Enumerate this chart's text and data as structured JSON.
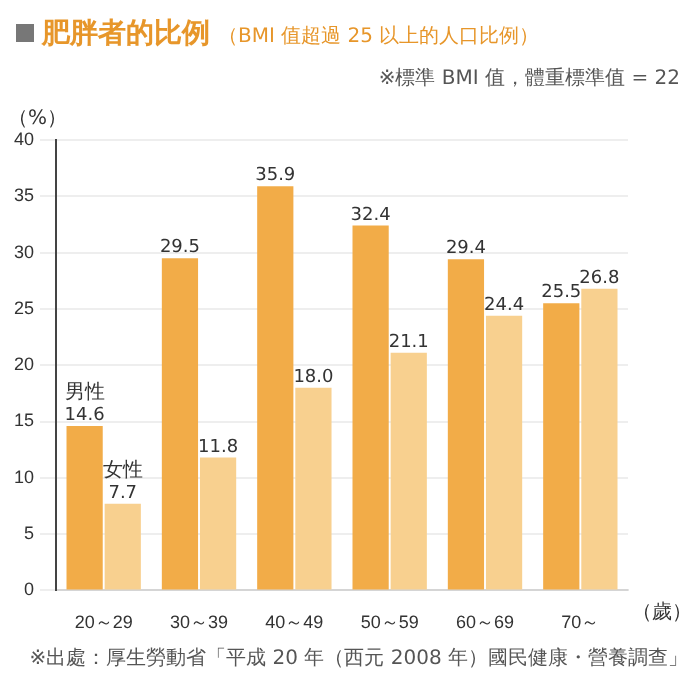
{
  "chart_data": {
    "type": "bar",
    "title": "肥胖者的比例",
    "subtitle": "（BMI 值超過 25 以上的人口比例）",
    "ylabel": "（%）",
    "xlabel": "（歲）",
    "categories": [
      "20～29",
      "30～39",
      "40～49",
      "50～59",
      "60～69",
      "70～"
    ],
    "series": [
      {
        "name": "男性",
        "color": "#f2ac48",
        "values": [
          14.6,
          29.5,
          35.9,
          32.4,
          29.4,
          25.5
        ],
        "value_labels": [
          "14.6",
          "29.5",
          "35.9",
          "32.4",
          "29.4",
          "25.5"
        ]
      },
      {
        "name": "女性",
        "color": "#f8d08f",
        "values": [
          7.7,
          11.8,
          18.0,
          21.1,
          24.4,
          26.8
        ],
        "value_labels": [
          "7.7",
          "11.8",
          "18.0",
          "21.1",
          "24.4",
          "26.8"
        ]
      }
    ],
    "ylim": [
      0,
      40
    ],
    "yticks": [
      0,
      5,
      10,
      15,
      20,
      25,
      30,
      35,
      40
    ],
    "grid": "y",
    "legend": false,
    "annotations": [
      "※標準 BMI 值，體重標準值 = 22",
      "※出處：厚生勞動省「平成 20 年（西元 2008 年）國民健康・營養調查」"
    ]
  }
}
